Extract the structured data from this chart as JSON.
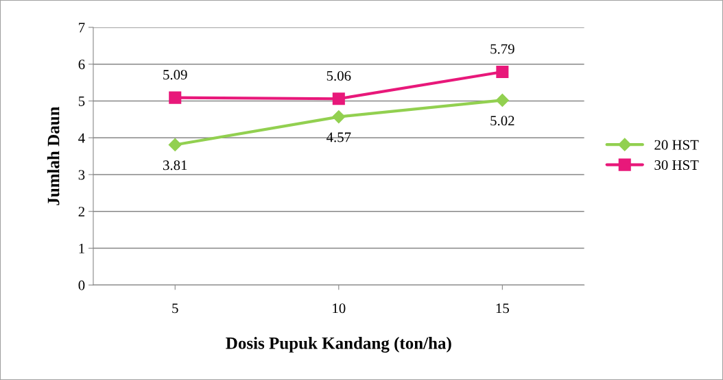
{
  "chart_data": {
    "type": "line",
    "xlabel": "Dosis Pupuk Kandang (ton/ha)",
    "ylabel": "Jumlah Daun",
    "categories": [
      "5",
      "10",
      "15"
    ],
    "series": [
      {
        "name": "20 HST",
        "color": "#92d050",
        "values": [
          3.81,
          4.57,
          5.02
        ],
        "marker": "diamond"
      },
      {
        "name": "30 HST",
        "color": "#e8187a",
        "values": [
          5.09,
          5.06,
          5.79
        ],
        "marker": "square"
      }
    ],
    "ylim": [
      0,
      7
    ],
    "yticks": [
      0,
      1,
      2,
      3,
      4,
      5,
      6,
      7
    ],
    "grid": "y",
    "legend": "right",
    "data_labels": true,
    "line_style": "solid"
  }
}
